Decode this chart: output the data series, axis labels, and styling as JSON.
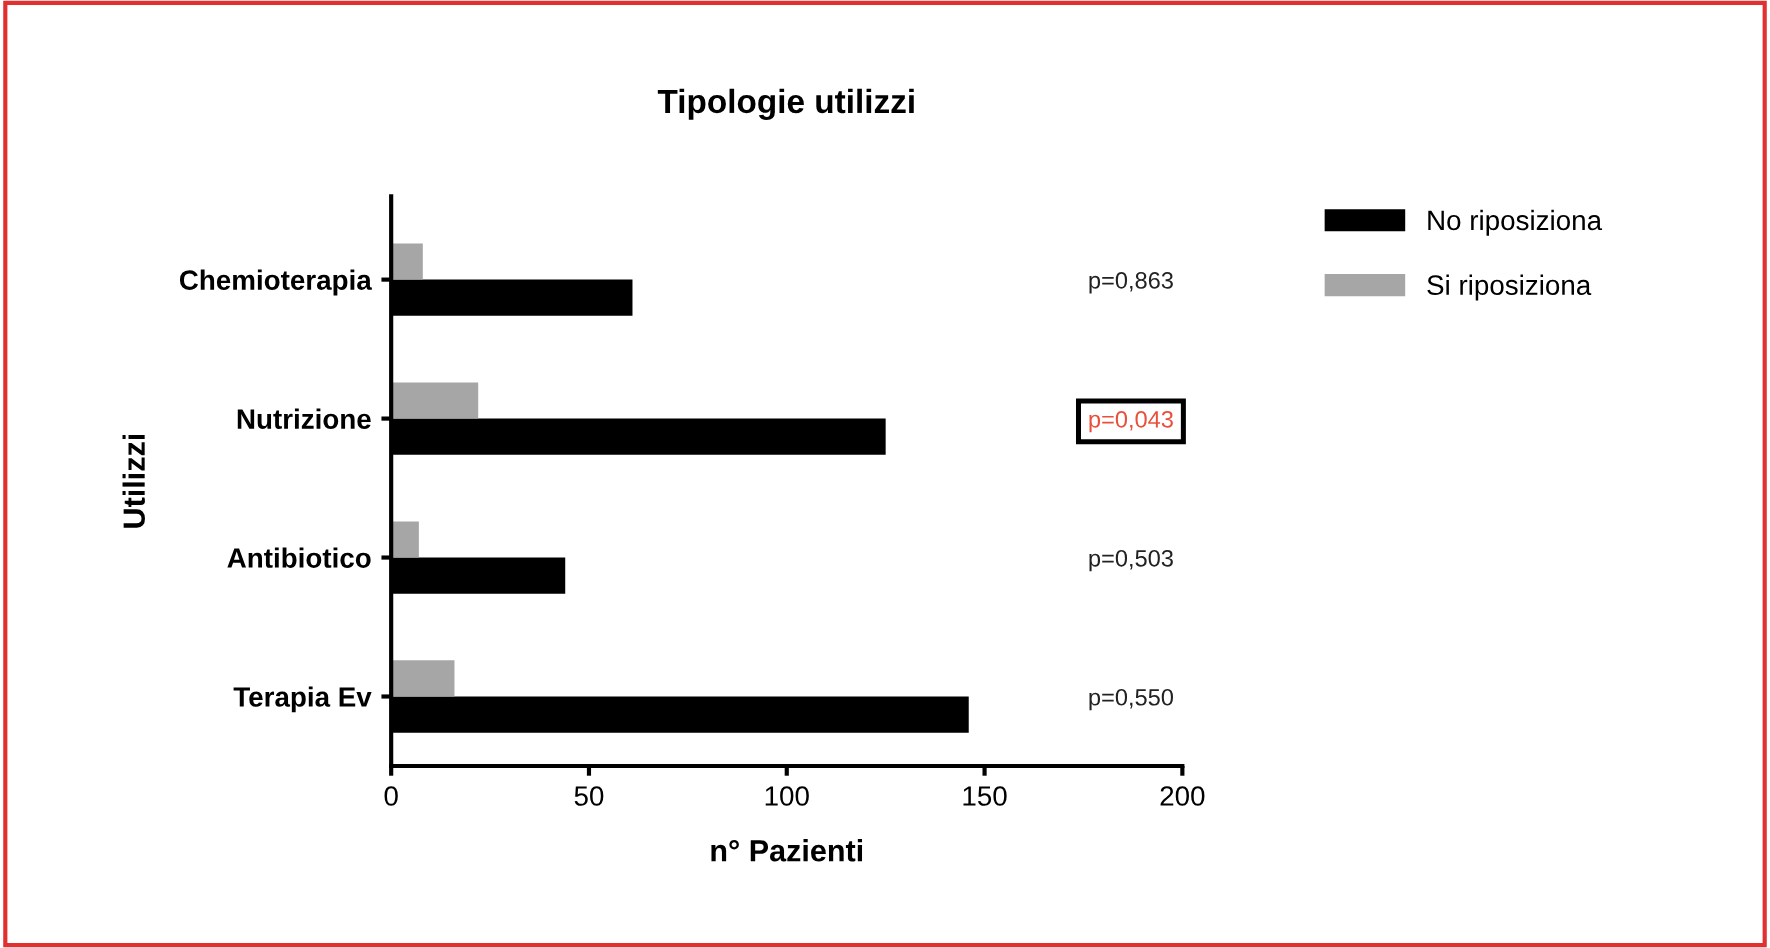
{
  "chart_data": {
    "type": "bar",
    "orientation": "horizontal",
    "title": "Tipologie utilizzi",
    "xlabel": "n° Pazienti",
    "ylabel": "Utilizzi",
    "categories": [
      "Chemioterapia",
      "Nutrizione",
      "Antibiotico",
      "Terapia Ev"
    ],
    "series": [
      {
        "name": "No riposiziona",
        "color": "#000000",
        "values": [
          61,
          125,
          44,
          146
        ]
      },
      {
        "name": "Si riposiziona",
        "color": "#a6a6a6",
        "values": [
          8,
          22,
          7,
          16
        ]
      }
    ],
    "xlim": [
      0,
      200
    ],
    "xticks": [
      0,
      50,
      100,
      150,
      200
    ],
    "grid": false,
    "legend": "right",
    "annotations": [
      "p=0,863",
      "p=0,043",
      "p=0,503",
      "p=0,550"
    ]
  }
}
